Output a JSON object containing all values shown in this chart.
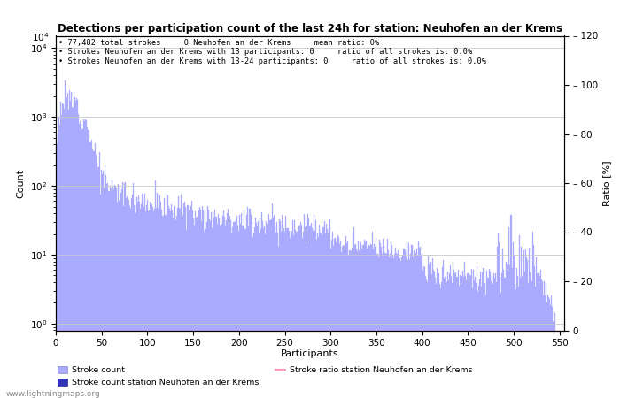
{
  "title": "Detections per participation count of the last 24h for station: Neuhofen an der Krems",
  "xlabel": "Participants",
  "ylabel_left": "Count",
  "ylabel_right": "Ratio [%]",
  "annotation_lines": [
    "77,482 total strokes     0 Neuhofen an der Krems     mean ratio: 0%",
    "Strokes Neuhofen an der Krems with 13 participants: 0     ratio of all strokes is: 0.0%",
    "Strokes Neuhofen an der Krems with 13-24 participants: 0     ratio of all strokes is: 0.0%"
  ],
  "bar_color_main": "#aaaaff",
  "bar_color_station": "#3333bb",
  "ratio_line_color": "#ff99bb",
  "watermark": "www.lightningmaps.org",
  "legend_label_stroke": "Stroke count",
  "legend_label_station": "Stroke count station Neuhofen an der Krems",
  "legend_label_ratio": "Stroke ratio station Neuhofen an der Krems",
  "xlim": [
    0,
    555
  ],
  "ylim_right": [
    0,
    120
  ],
  "xticks": [
    0,
    50,
    100,
    150,
    200,
    250,
    300,
    350,
    400,
    450,
    500,
    550
  ],
  "yticks_right": [
    0,
    20,
    40,
    60,
    80,
    100,
    120
  ],
  "background_color": "#ffffff",
  "grid_color": "#c8c8c8"
}
